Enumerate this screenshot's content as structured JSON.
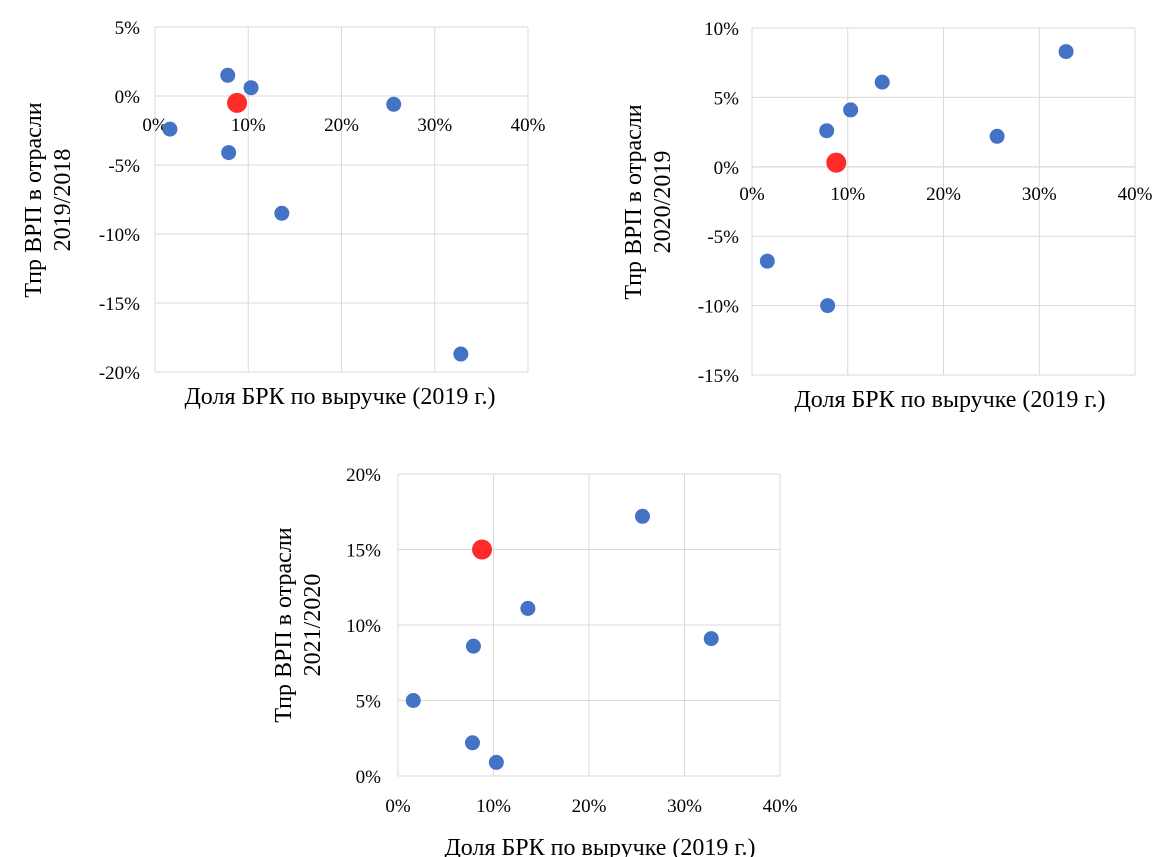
{
  "chart_data": [
    {
      "type": "scatter",
      "xlabel": "Доля БРК по выручке (2019 г.)",
      "ylabel_lines": [
        "Тпр ВРП  в отрасли",
        "2019/2018"
      ],
      "xlim": [
        0,
        40
      ],
      "ylim": [
        -20,
        5
      ],
      "xticks": [
        "0%",
        "10%",
        "20%",
        "30%",
        "40%"
      ],
      "yticks": [
        "5%",
        "0%",
        "-5%",
        "-10%",
        "-15%",
        "-20%"
      ],
      "grid": true,
      "colors": {
        "point": "#4472c4",
        "highlight": "#ff2a2a"
      },
      "points": [
        {
          "x": 1.6,
          "y": -2.4
        },
        {
          "x": 7.8,
          "y": 1.5
        },
        {
          "x": 7.9,
          "y": -4.1
        },
        {
          "x": 10.3,
          "y": 0.6
        },
        {
          "x": 13.6,
          "y": -8.5
        },
        {
          "x": 25.6,
          "y": -0.6
        },
        {
          "x": 32.8,
          "y": -18.7
        }
      ],
      "highlight": {
        "x": 8.8,
        "y": -0.5
      }
    },
    {
      "type": "scatter",
      "xlabel": "Доля БРК по выручке (2019 г.)",
      "ylabel_lines": [
        "Тпр ВРП  в отрасли",
        "2020/2019"
      ],
      "xlim": [
        0,
        40
      ],
      "ylim": [
        -15,
        10
      ],
      "xticks": [
        "0%",
        "10%",
        "20%",
        "30%",
        "40%"
      ],
      "yticks": [
        "10%",
        "5%",
        "0%",
        "-5%",
        "-10%",
        "-15%"
      ],
      "grid": true,
      "colors": {
        "point": "#4472c4",
        "highlight": "#ff2a2a"
      },
      "points": [
        {
          "x": 1.6,
          "y": -6.8
        },
        {
          "x": 7.8,
          "y": 2.6
        },
        {
          "x": 7.9,
          "y": -10.0
        },
        {
          "x": 10.3,
          "y": 4.1
        },
        {
          "x": 13.6,
          "y": 6.1
        },
        {
          "x": 25.6,
          "y": 2.2
        },
        {
          "x": 32.8,
          "y": 8.3
        }
      ],
      "highlight": {
        "x": 8.8,
        "y": 0.3
      }
    },
    {
      "type": "scatter",
      "xlabel": "Доля БРК по выручке (2019 г.)",
      "ylabel_lines": [
        "Тпр ВРП  в отрасли",
        "2021/2020"
      ],
      "xlim": [
        0,
        40
      ],
      "ylim": [
        0,
        20
      ],
      "xticks": [
        "0%",
        "10%",
        "20%",
        "30%",
        "40%"
      ],
      "yticks": [
        "20%",
        "15%",
        "10%",
        "5%",
        "0%"
      ],
      "grid": true,
      "colors": {
        "point": "#4472c4",
        "highlight": "#ff2a2a"
      },
      "points": [
        {
          "x": 1.6,
          "y": 5.0
        },
        {
          "x": 7.8,
          "y": 2.2
        },
        {
          "x": 7.9,
          "y": 8.6
        },
        {
          "x": 10.3,
          "y": 0.9
        },
        {
          "x": 13.6,
          "y": 11.1
        },
        {
          "x": 25.6,
          "y": 17.2
        },
        {
          "x": 32.8,
          "y": 9.1
        }
      ],
      "highlight": {
        "x": 8.8,
        "y": 15.0
      }
    }
  ]
}
